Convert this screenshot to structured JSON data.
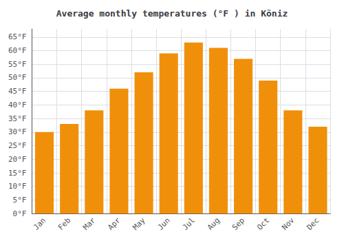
{
  "chart_data": {
    "type": "bar",
    "title": "Average monthly temperatures (°F ) in Köniz",
    "categories": [
      "Jan",
      "Feb",
      "Mar",
      "Apr",
      "May",
      "Jun",
      "Jul",
      "Aug",
      "Sep",
      "Oct",
      "Nov",
      "Dec"
    ],
    "values": [
      30,
      33,
      38,
      46,
      52,
      59,
      63,
      61,
      57,
      49,
      38,
      32
    ],
    "color": "#F0900A",
    "ylim": [
      0,
      68
    ],
    "yticks": [
      {
        "value": 0,
        "label": "0°F"
      },
      {
        "value": 5,
        "label": "5°F"
      },
      {
        "value": 10,
        "label": "10°F"
      },
      {
        "value": 15,
        "label": "15°F"
      },
      {
        "value": 20,
        "label": "20°F"
      },
      {
        "value": 25,
        "label": "25°F"
      },
      {
        "value": 30,
        "label": "30°F"
      },
      {
        "value": 35,
        "label": "35°F"
      },
      {
        "value": 40,
        "label": "40°F"
      },
      {
        "value": 45,
        "label": "45°F"
      },
      {
        "value": 50,
        "label": "50°F"
      },
      {
        "value": 55,
        "label": "55°F"
      },
      {
        "value": 60,
        "label": "60°F"
      },
      {
        "value": 65,
        "label": "65°F"
      }
    ],
    "grid": true
  }
}
